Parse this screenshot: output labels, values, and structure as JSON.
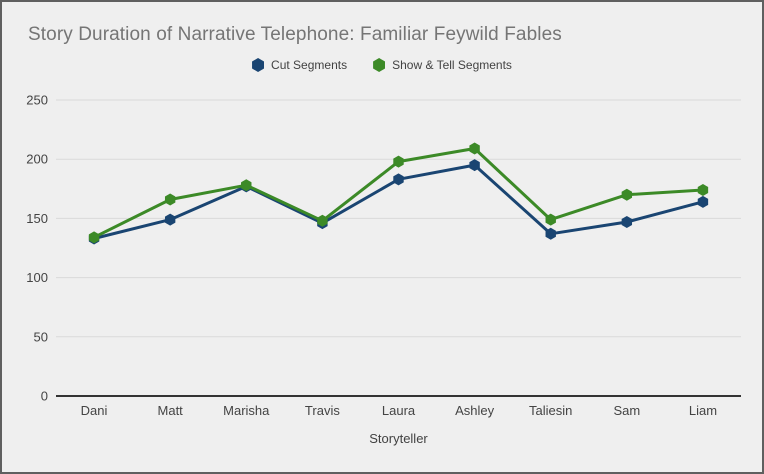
{
  "window": {
    "background": "#efefef",
    "border_color": "#5f5f5f",
    "gridline_color": "#dadada",
    "axis_line_color": "#333333",
    "tick_label_color": "#444444",
    "title_color": "#757575",
    "legend_text_color": "#424242"
  },
  "chart_data": {
    "type": "line",
    "title": "Story Duration of Narrative Telephone: Familiar Feywild Fables",
    "xlabel": "Storyteller",
    "ylabel": "",
    "categories": [
      "Dani",
      "Matt",
      "Marisha",
      "Travis",
      "Laura",
      "Ashley",
      "Taliesin",
      "Sam",
      "Liam"
    ],
    "series": [
      {
        "name": "Cut Segments",
        "color": "#1a4572",
        "marker": "hexagon-icon",
        "values": [
          133,
          149,
          177,
          146,
          183,
          195,
          137,
          147,
          164
        ]
      },
      {
        "name": "Show & Tell Segments",
        "color": "#3c8a27",
        "marker": "hexagon-icon",
        "values": [
          134,
          166,
          178,
          148,
          198,
          209,
          149,
          170,
          174
        ]
      }
    ],
    "ylim": [
      0,
      250
    ],
    "yticks": [
      0,
      50,
      100,
      150,
      200,
      250
    ],
    "grid": true,
    "legend_position": "top-center",
    "marker_shape": "hexagon",
    "line_width": 3
  }
}
